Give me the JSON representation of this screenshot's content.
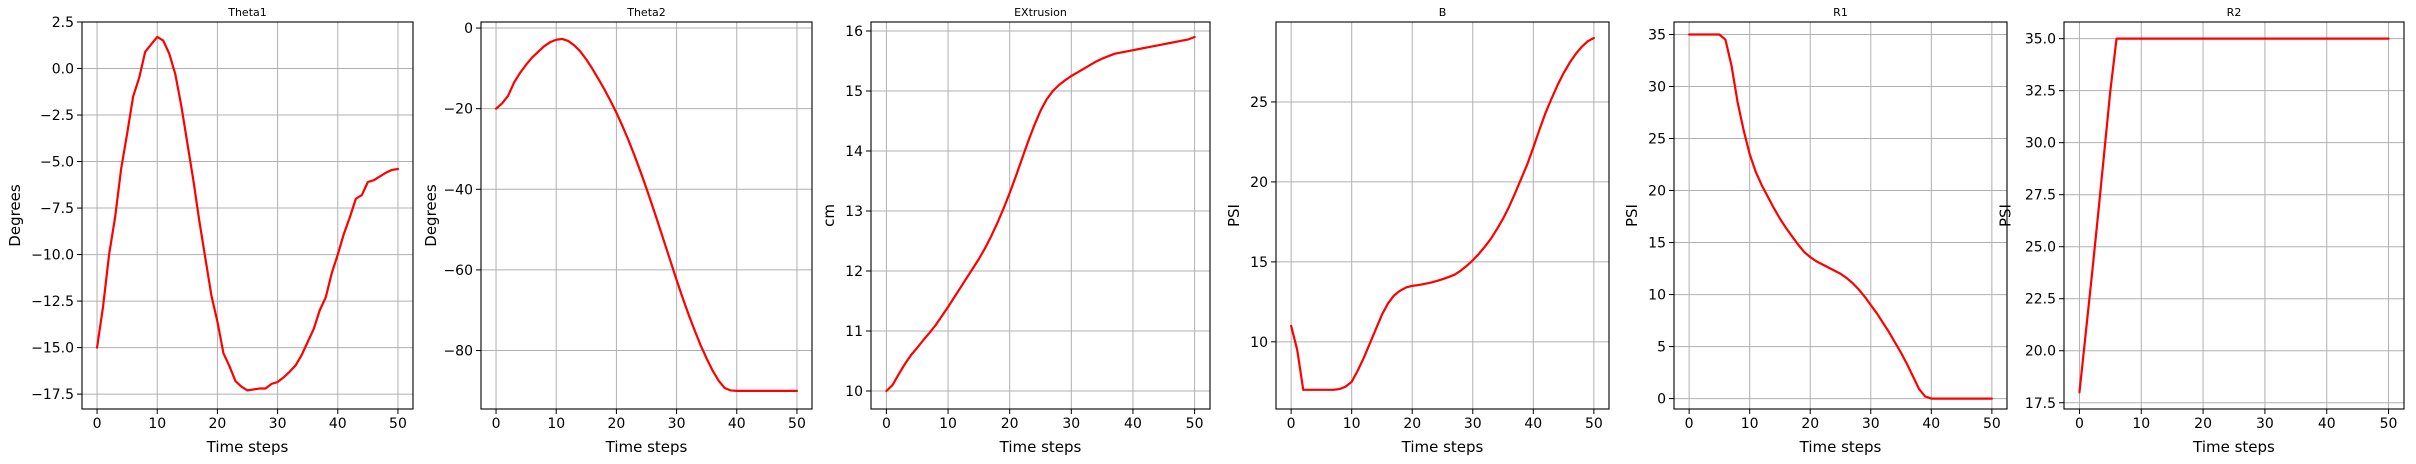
{
  "chart_data": [
    {
      "type": "line",
      "title": "Theta1",
      "xlabel": "Time steps",
      "ylabel": "Degrees",
      "xlim": [
        -2.5,
        52.5
      ],
      "ylim": [
        -18.3,
        2.5
      ],
      "xticks": [
        0,
        10,
        20,
        30,
        40,
        50
      ],
      "xtick_labels": [
        "0",
        "10",
        "20",
        "30",
        "40",
        "50"
      ],
      "yticks": [
        -17.5,
        -15.0,
        -12.5,
        -10.0,
        -7.5,
        -5.0,
        -2.5,
        0.0,
        2.5
      ],
      "ytick_labels": [
        "−17.5",
        "−15.0",
        "−12.5",
        "−10.0",
        "−7.5",
        "−5.0",
        "−2.5",
        "0.0",
        "2.5"
      ],
      "grid": true,
      "line_color": "#ff0000",
      "series": [
        {
          "x": [
            0,
            1,
            2,
            3,
            4,
            5,
            6,
            7,
            8,
            9,
            10,
            11,
            12,
            13,
            14,
            15,
            16,
            17,
            18,
            19,
            20,
            21,
            22,
            23,
            24,
            25,
            26,
            27,
            28,
            29,
            30,
            31,
            32,
            33,
            34,
            35,
            36,
            37,
            38,
            39,
            40,
            41,
            42,
            43,
            44,
            45,
            46,
            47,
            48,
            49,
            50
          ],
          "y": [
            -15.0,
            -12.8,
            -10.0,
            -8.0,
            -5.4,
            -3.5,
            -1.5,
            -0.5,
            0.9,
            1.3,
            1.7,
            1.5,
            0.8,
            -0.3,
            -2.0,
            -4.0,
            -6.0,
            -8.2,
            -10.2,
            -12.2,
            -13.6,
            -15.3,
            -16.0,
            -16.8,
            -17.1,
            -17.3,
            -17.25,
            -17.2,
            -17.2,
            -16.95,
            -16.85,
            -16.6,
            -16.3,
            -15.95,
            -15.4,
            -14.7,
            -14.0,
            -13.0,
            -12.3,
            -11.0,
            -10.0,
            -8.9,
            -8.0,
            -7.0,
            -6.8,
            -6.1,
            -6.0,
            -5.8,
            -5.6,
            -5.45,
            -5.4
          ]
        }
      ]
    },
    {
      "type": "line",
      "title": "Theta2",
      "xlabel": "Time steps",
      "ylabel": "Degrees",
      "xlim": [
        -2.5,
        52.5
      ],
      "ylim": [
        -94.5,
        1.5
      ],
      "xticks": [
        0,
        10,
        20,
        30,
        40,
        50
      ],
      "xtick_labels": [
        "0",
        "10",
        "20",
        "30",
        "40",
        "50"
      ],
      "yticks": [
        -80,
        -60,
        -40,
        -20,
        0
      ],
      "ytick_labels": [
        "−80",
        "−60",
        "−40",
        "−20",
        "0"
      ],
      "grid": true,
      "line_color": "#ff0000",
      "series": [
        {
          "x": [
            0,
            1,
            2,
            3,
            4,
            5,
            6,
            7,
            8,
            9,
            10,
            11,
            12,
            13,
            14,
            15,
            16,
            17,
            18,
            19,
            20,
            21,
            22,
            23,
            24,
            25,
            26,
            27,
            28,
            29,
            30,
            31,
            32,
            33,
            34,
            35,
            36,
            37,
            38,
            39,
            40,
            41,
            42,
            43,
            44,
            45,
            46,
            47,
            48,
            49,
            50
          ],
          "y": [
            -20.0,
            -18.7,
            -16.8,
            -13.5,
            -11.1,
            -9.1,
            -7.3,
            -5.9,
            -4.5,
            -3.5,
            -2.9,
            -2.7,
            -3.2,
            -4.3,
            -5.8,
            -7.8,
            -10.1,
            -12.6,
            -15.2,
            -18.0,
            -21.0,
            -24.3,
            -27.8,
            -31.6,
            -35.6,
            -39.8,
            -44.2,
            -48.7,
            -53.3,
            -57.9,
            -62.5,
            -66.9,
            -71.1,
            -75.0,
            -78.7,
            -82.0,
            -85.0,
            -87.5,
            -89.3,
            -89.9,
            -90.0,
            -90.0,
            -90.0,
            -90.0,
            -90.0,
            -90.0,
            -90.0,
            -90.0,
            -90.0,
            -90.0,
            -90.0
          ]
        }
      ]
    },
    {
      "type": "line",
      "title": "EXtrusion",
      "xlabel": "Time steps",
      "ylabel": "cm",
      "xlim": [
        -2.5,
        52.5
      ],
      "ylim": [
        9.7,
        16.15
      ],
      "xticks": [
        0,
        10,
        20,
        30,
        40,
        50
      ],
      "xtick_labels": [
        "0",
        "10",
        "20",
        "30",
        "40",
        "50"
      ],
      "yticks": [
        10,
        11,
        12,
        13,
        14,
        15,
        16
      ],
      "ytick_labels": [
        "10",
        "11",
        "12",
        "13",
        "14",
        "15",
        "16"
      ],
      "grid": true,
      "line_color": "#ff0000",
      "series": [
        {
          "x": [
            0,
            1,
            2,
            3,
            4,
            5,
            6,
            7,
            8,
            9,
            10,
            11,
            12,
            13,
            14,
            15,
            16,
            17,
            18,
            19,
            20,
            21,
            22,
            23,
            24,
            25,
            26,
            27,
            28,
            29,
            30,
            31,
            32,
            33,
            34,
            35,
            36,
            37,
            38,
            39,
            40,
            41,
            42,
            43,
            44,
            45,
            46,
            47,
            48,
            49,
            50
          ],
          "y": [
            10.0,
            10.1,
            10.28,
            10.45,
            10.6,
            10.72,
            10.85,
            10.97,
            11.1,
            11.25,
            11.4,
            11.56,
            11.72,
            11.88,
            12.04,
            12.2,
            12.38,
            12.58,
            12.8,
            13.04,
            13.3,
            13.58,
            13.87,
            14.16,
            14.43,
            14.67,
            14.86,
            15.0,
            15.1,
            15.18,
            15.25,
            15.31,
            15.37,
            15.43,
            15.49,
            15.54,
            15.58,
            15.62,
            15.64,
            15.66,
            15.68,
            15.7,
            15.72,
            15.74,
            15.76,
            15.78,
            15.8,
            15.82,
            15.84,
            15.86,
            15.9
          ]
        }
      ]
    },
    {
      "type": "line",
      "title": "B",
      "xlabel": "Time steps",
      "ylabel": "PSI",
      "xlim": [
        -2.5,
        52.5
      ],
      "ylim": [
        5.8,
        30.0
      ],
      "xticks": [
        0,
        10,
        20,
        30,
        40,
        50
      ],
      "xtick_labels": [
        "0",
        "10",
        "20",
        "30",
        "40",
        "50"
      ],
      "yticks": [
        10,
        15,
        20,
        25
      ],
      "ytick_labels": [
        "10",
        "15",
        "20",
        "25"
      ],
      "grid": true,
      "line_color": "#ff0000",
      "series": [
        {
          "x": [
            0,
            1,
            2,
            3,
            4,
            5,
            6,
            7,
            8,
            9,
            10,
            11,
            12,
            13,
            14,
            15,
            16,
            17,
            18,
            19,
            20,
            21,
            22,
            23,
            24,
            25,
            26,
            27,
            28,
            29,
            30,
            31,
            32,
            33,
            34,
            35,
            36,
            37,
            38,
            39,
            40,
            41,
            42,
            43,
            44,
            45,
            46,
            47,
            48,
            49,
            50
          ],
          "y": [
            11.0,
            9.5,
            7.0,
            7.0,
            7.0,
            7.0,
            7.0,
            7.0,
            7.05,
            7.2,
            7.5,
            8.2,
            9.0,
            9.9,
            10.8,
            11.7,
            12.4,
            12.9,
            13.2,
            13.4,
            13.5,
            13.55,
            13.62,
            13.7,
            13.8,
            13.92,
            14.05,
            14.2,
            14.45,
            14.75,
            15.1,
            15.5,
            15.95,
            16.45,
            17.05,
            17.7,
            18.45,
            19.3,
            20.2,
            21.1,
            22.15,
            23.25,
            24.3,
            25.2,
            26.05,
            26.8,
            27.45,
            28.0,
            28.45,
            28.8,
            29.0
          ]
        }
      ]
    },
    {
      "type": "line",
      "title": "R1",
      "xlabel": "Time steps",
      "ylabel": "PSI",
      "xlim": [
        -2.5,
        52.5
      ],
      "ylim": [
        -1.0,
        36.2
      ],
      "xticks": [
        0,
        10,
        20,
        30,
        40,
        50
      ],
      "xtick_labels": [
        "0",
        "10",
        "20",
        "30",
        "40",
        "50"
      ],
      "yticks": [
        0,
        5,
        10,
        15,
        20,
        25,
        30,
        35
      ],
      "ytick_labels": [
        "0",
        "5",
        "10",
        "15",
        "20",
        "25",
        "30",
        "35"
      ],
      "grid": true,
      "line_color": "#ff0000",
      "series": [
        {
          "x": [
            0,
            1,
            2,
            3,
            4,
            5,
            6,
            7,
            8,
            9,
            10,
            11,
            12,
            13,
            14,
            15,
            16,
            17,
            18,
            19,
            20,
            21,
            22,
            23,
            24,
            25,
            26,
            27,
            28,
            29,
            30,
            31,
            32,
            33,
            34,
            35,
            36,
            37,
            38,
            39,
            40,
            41,
            42,
            43,
            44,
            45,
            46,
            47,
            48,
            49,
            50
          ],
          "y": [
            35.0,
            35.0,
            35.0,
            35.0,
            35.0,
            35.0,
            34.5,
            32.0,
            28.5,
            25.8,
            23.5,
            21.8,
            20.5,
            19.4,
            18.3,
            17.3,
            16.4,
            15.6,
            14.8,
            14.1,
            13.6,
            13.2,
            12.9,
            12.6,
            12.3,
            12.0,
            11.6,
            11.1,
            10.5,
            9.8,
            9.0,
            8.2,
            7.3,
            6.4,
            5.4,
            4.4,
            3.3,
            2.1,
            0.9,
            0.2,
            0.0,
            0.0,
            0.0,
            0.0,
            0.0,
            0.0,
            0.0,
            0.0,
            0.0,
            0.0,
            0.0
          ]
        }
      ]
    },
    {
      "type": "line",
      "title": "R2",
      "xlabel": "Time steps",
      "ylabel": "PSI",
      "xlim": [
        -2.5,
        52.5
      ],
      "ylim": [
        17.2,
        35.8
      ],
      "xticks": [
        0,
        10,
        20,
        30,
        40,
        50
      ],
      "xtick_labels": [
        "0",
        "10",
        "20",
        "30",
        "40",
        "50"
      ],
      "yticks": [
        17.5,
        20.0,
        22.5,
        25.0,
        27.5,
        30.0,
        32.5,
        35.0
      ],
      "ytick_labels": [
        "17.5",
        "20.0",
        "22.5",
        "25.0",
        "27.5",
        "30.0",
        "32.5",
        "35.0"
      ],
      "grid": true,
      "line_color": "#ff0000",
      "series": [
        {
          "x": [
            0,
            1,
            2,
            3,
            4,
            5,
            6,
            7,
            8,
            9,
            10,
            11,
            12,
            13,
            14,
            15,
            16,
            17,
            18,
            19,
            20,
            21,
            22,
            23,
            24,
            25,
            26,
            27,
            28,
            29,
            30,
            31,
            32,
            33,
            34,
            35,
            36,
            37,
            38,
            39,
            40,
            41,
            42,
            43,
            44,
            45,
            46,
            47,
            48,
            49,
            50
          ],
          "y": [
            18.0,
            20.8,
            23.6,
            26.5,
            29.5,
            32.5,
            35.0,
            35.0,
            35.0,
            35.0,
            35.0,
            35.0,
            35.0,
            35.0,
            35.0,
            35.0,
            35.0,
            35.0,
            35.0,
            35.0,
            35.0,
            35.0,
            35.0,
            35.0,
            35.0,
            35.0,
            35.0,
            35.0,
            35.0,
            35.0,
            35.0,
            35.0,
            35.0,
            35.0,
            35.0,
            35.0,
            35.0,
            35.0,
            35.0,
            35.0,
            35.0,
            35.0,
            35.0,
            35.0,
            35.0,
            35.0,
            35.0,
            35.0,
            35.0,
            35.0,
            35.0
          ]
        }
      ]
    }
  ]
}
